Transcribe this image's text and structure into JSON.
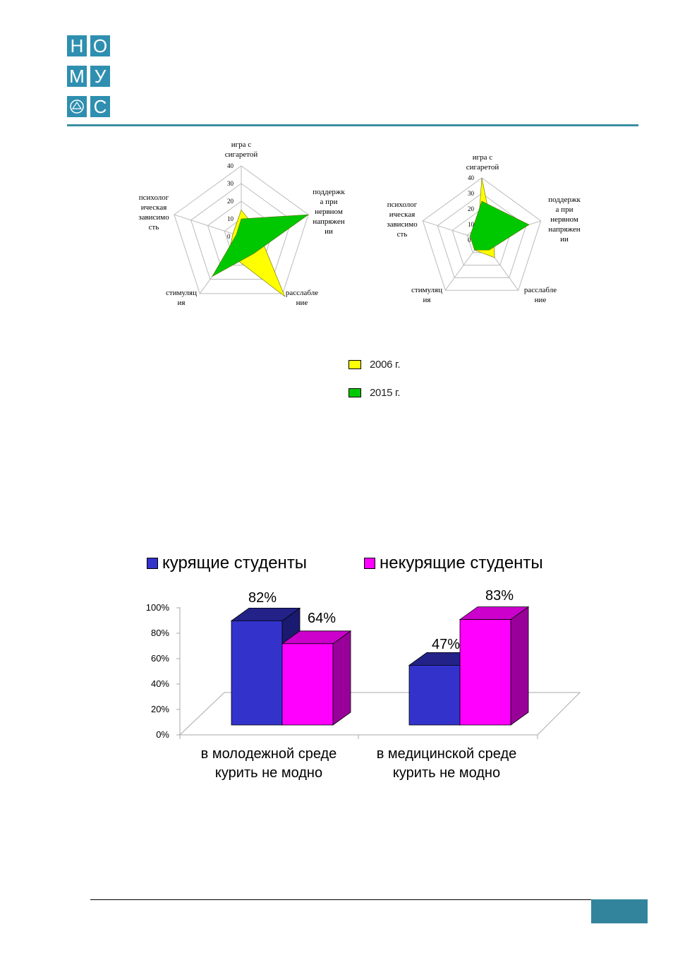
{
  "logo": {
    "letters": [
      "Н",
      "О",
      "М",
      "У",
      "",
      "С"
    ],
    "color": "#2f8fb0"
  },
  "radar_axes": [
    "игра с сигаретой",
    "поддержка при нервном напряжении",
    "расслабление",
    "стимуляция",
    "психологическая зависимость"
  ],
  "radar_axes_display": {
    "left": [
      "игра с\nсигаретой",
      "поддержк\nа при\nнервном\nнапряжен\nии",
      "расслабле\nние",
      "стимуляц\nия",
      "психолог\nическая\nзависимо\nсть"
    ],
    "right": [
      "игра с\nсигаретой",
      "поддержк\nа при\nнервном\nнапряжен\nии",
      "расслабле\nние",
      "стимуляц\nия",
      "психолог\nическая\nзависимо\nсть"
    ]
  },
  "radar_ticks": [
    "0",
    "10",
    "20",
    "30",
    "40"
  ],
  "legend_small": [
    {
      "label": "2006 г.",
      "color": "#ffff00"
    },
    {
      "label": "2015 г.",
      "color": "#00c800"
    }
  ],
  "chart_data": [
    {
      "type": "radar",
      "categories": [
        "игра с сигаретой",
        "поддержка при нервном напряжении",
        "расслабление",
        "стимуляция",
        "психологическая зависимость"
      ],
      "rlim": [
        0,
        40
      ],
      "series": [
        {
          "name": "2006 г.",
          "color": "#ffff00",
          "values": [
            15,
            10,
            42,
            12,
            5
          ]
        },
        {
          "name": "2015 г.",
          "color": "#00c800",
          "values": [
            10,
            40,
            12,
            28,
            3
          ]
        }
      ]
    },
    {
      "type": "radar",
      "categories": [
        "игра с сигаретой",
        "поддержка при нервном напряжении",
        "расслабление",
        "стимуляция",
        "психологическая зависимость"
      ],
      "rlim": [
        0,
        40
      ],
      "series": [
        {
          "name": "2006 г.",
          "color": "#ffff00",
          "values": [
            40,
            8,
            14,
            8,
            3
          ]
        },
        {
          "name": "2015 г.",
          "color": "#00c800",
          "values": [
            25,
            32,
            8,
            8,
            8
          ]
        }
      ]
    },
    {
      "type": "bar",
      "categories": [
        "в молодежной среде курить не модно",
        "в медицинской среде курить не модно"
      ],
      "series": [
        {
          "name": "курящие студенты",
          "color": "#3333cc",
          "values": [
            82,
            47
          ]
        },
        {
          "name": "некурящие студенты",
          "color": "#ff00ff",
          "values": [
            64,
            83
          ]
        }
      ],
      "ylim": [
        0,
        100
      ],
      "yticks": [
        "0%",
        "20%",
        "40%",
        "60%",
        "80%",
        "100%"
      ],
      "data_labels": [
        "82%",
        "64%",
        "47%",
        "83%"
      ],
      "category_lines": [
        [
          "в молодежной среде",
          "курить не модно"
        ],
        [
          "в медицинской среде",
          "курить не модно"
        ]
      ]
    }
  ],
  "footer": {
    "color": "#31849b"
  }
}
